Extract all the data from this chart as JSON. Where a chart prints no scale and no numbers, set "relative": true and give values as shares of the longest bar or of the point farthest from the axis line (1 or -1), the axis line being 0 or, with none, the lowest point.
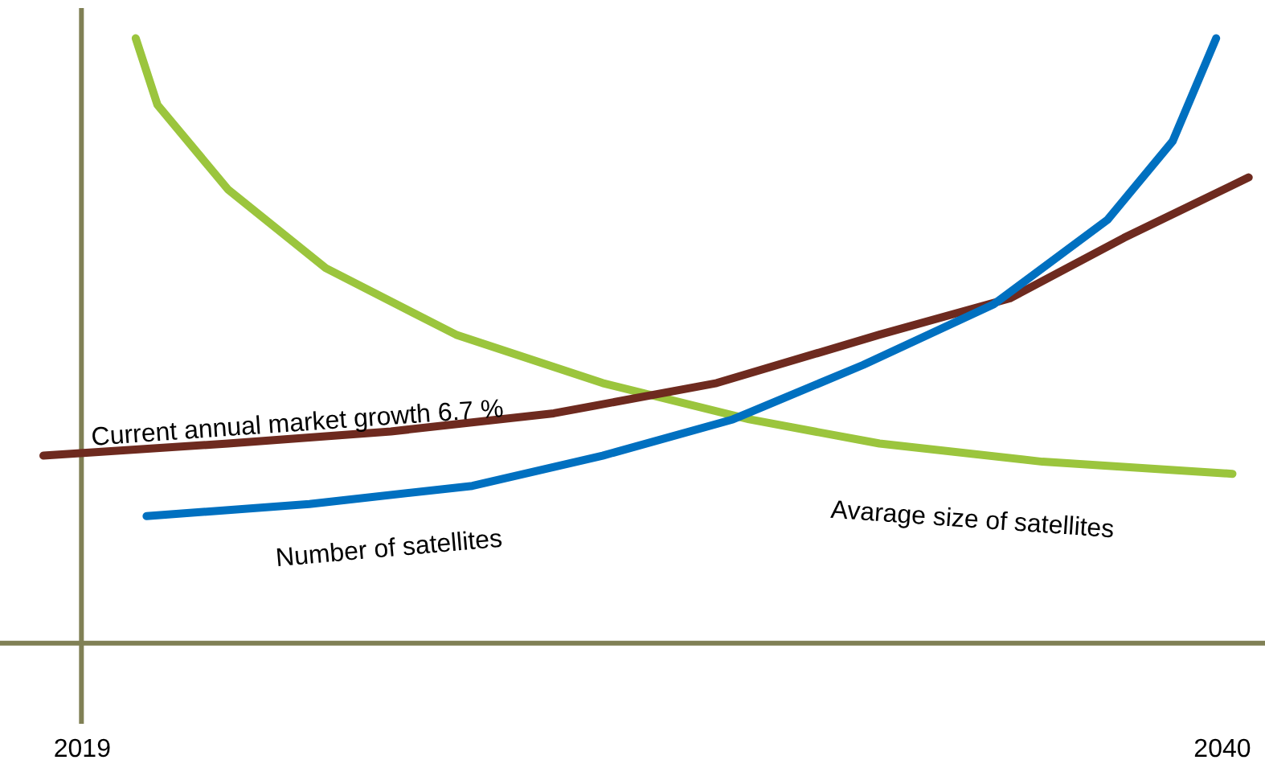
{
  "chart_data": {
    "type": "line",
    "relative": true,
    "xlim": [
      2017.5,
      2040.8
    ],
    "xticks": [
      2019,
      2040
    ],
    "grid": false,
    "ref_lines": [
      {
        "axis": "x",
        "value": 2019,
        "color": "#808055"
      }
    ],
    "marker": "none",
    "line_style": "solid",
    "series": [
      {
        "name": "Avarage size of satellites",
        "color": "#9bc53d",
        "x": [
          2020.0,
          2020.4,
          2021.7,
          2023.5,
          2025.9,
          2028.6,
          2031.3,
          2033.7,
          2036.7,
          2040.2
        ],
        "values": [
          1.0,
          0.89,
          0.75,
          0.62,
          0.51,
          0.43,
          0.37,
          0.33,
          0.3,
          0.28
        ]
      },
      {
        "name": "Current annual market  growth 6.7 %",
        "color": "#6e2a1f",
        "x": [
          2018.3,
          2021.7,
          2024.7,
          2027.7,
          2030.7,
          2033.7,
          2036.1,
          2038.2,
          2040.5
        ],
        "values": [
          0.31,
          0.33,
          0.35,
          0.38,
          0.43,
          0.51,
          0.57,
          0.67,
          0.77
        ]
      },
      {
        "name": "Number of satellites",
        "color": "#0070c0",
        "x": [
          2020.2,
          2023.2,
          2026.2,
          2028.6,
          2031.0,
          2033.4,
          2035.8,
          2037.9,
          2039.1,
          2039.9
        ],
        "values": [
          0.21,
          0.23,
          0.26,
          0.31,
          0.37,
          0.46,
          0.56,
          0.7,
          0.83,
          1.0
        ]
      }
    ]
  }
}
